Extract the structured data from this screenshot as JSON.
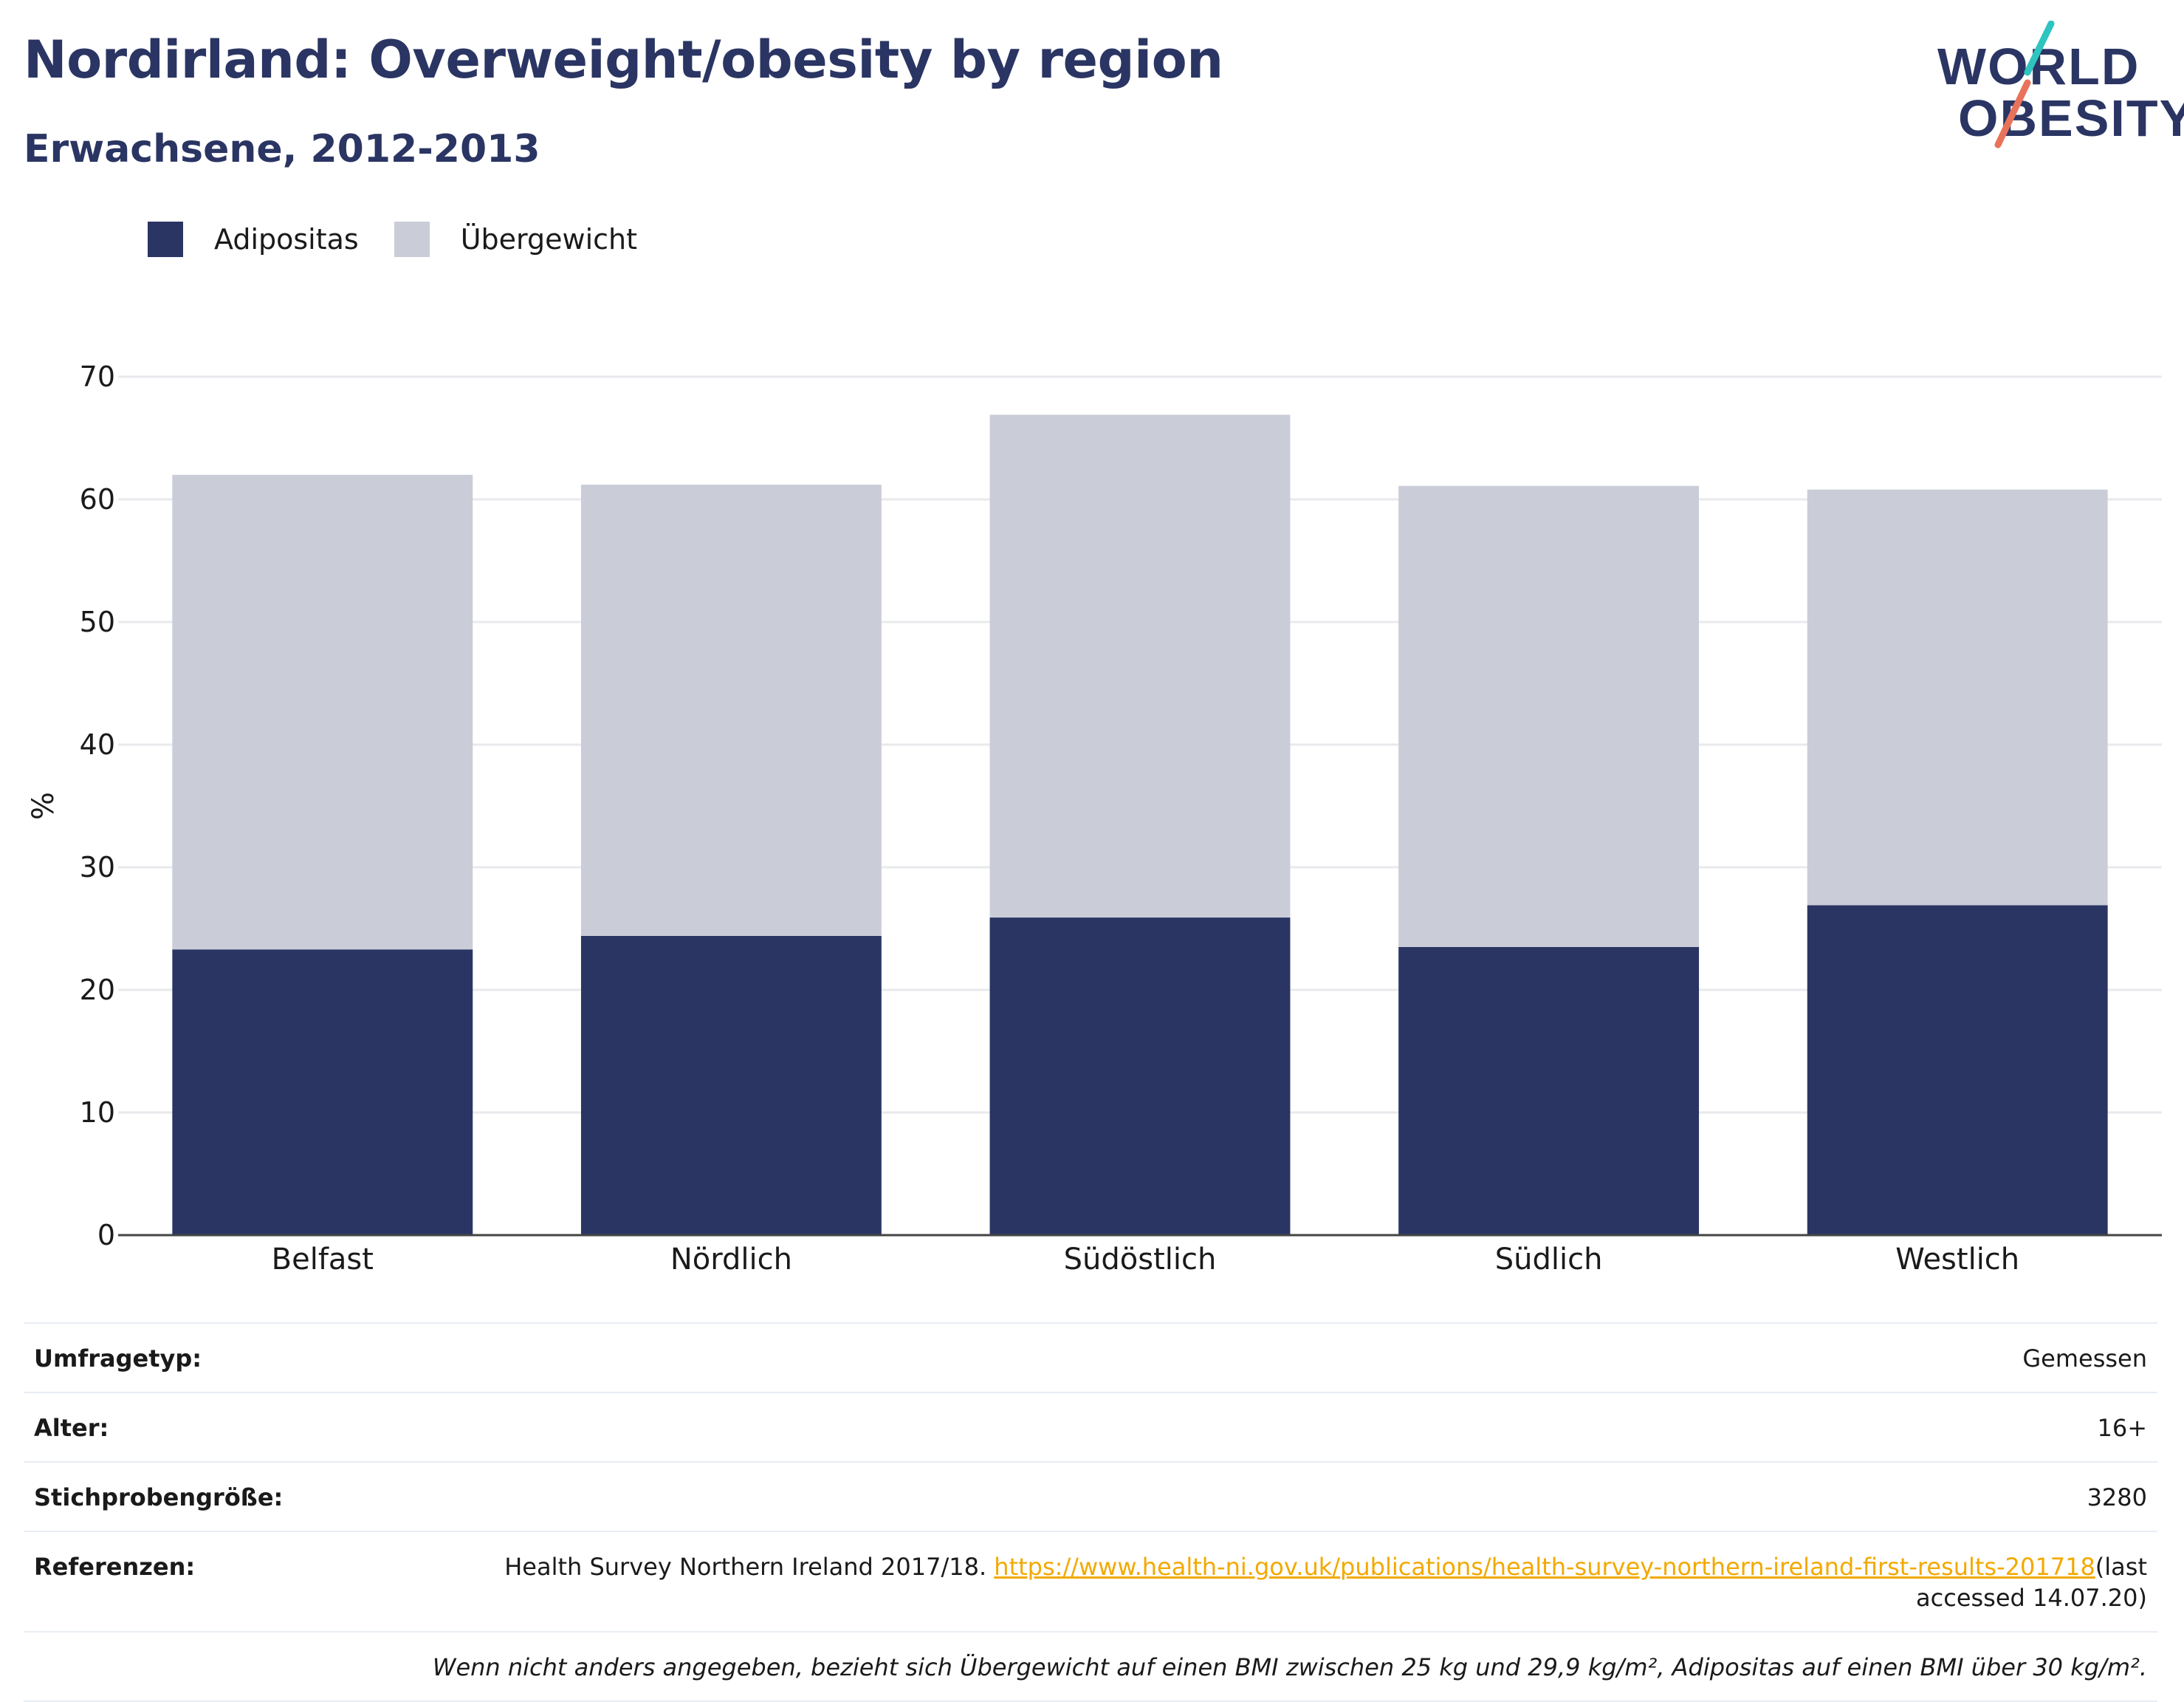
{
  "header": {
    "title": "Nordirland: Overweight/obesity by region",
    "subtitle": "Erwachsene, 2012-2013"
  },
  "logo": {
    "line1": "WORLD",
    "line2": "OBESITY",
    "accent_colors": [
      "#2ec4c0",
      "#e8735a"
    ]
  },
  "legend": [
    {
      "label": "Adipositas",
      "color": "#2a3563"
    },
    {
      "label": "Übergewicht",
      "color": "#cacdd8"
    }
  ],
  "chart_data": {
    "type": "bar",
    "stacked": true,
    "categories": [
      "Belfast",
      "Nördlich",
      "Südöstlich",
      "Südlich",
      "Westlich"
    ],
    "series": [
      {
        "name": "Adipositas",
        "values": [
          23.3,
          24.4,
          25.9,
          23.5,
          26.9
        ],
        "color": "#2a3563"
      },
      {
        "name": "Übergewicht",
        "values": [
          38.7,
          36.8,
          41.0,
          37.6,
          33.9
        ],
        "color": "#cacdd8"
      }
    ],
    "ylabel": "%",
    "ylim": [
      0,
      70
    ],
    "yticks": [
      0,
      10,
      20,
      30,
      40,
      50,
      60,
      70
    ],
    "grid": true,
    "legend_position": "top-left"
  },
  "info": {
    "rows": [
      {
        "label": "Umfragetyp:",
        "value": "Gemessen"
      },
      {
        "label": "Alter:",
        "value": "16+"
      },
      {
        "label": "Stichprobengröße:",
        "value": "3280"
      }
    ],
    "reference": {
      "label": "Referenzen:",
      "text": "Health Survey Northern Ireland 2017/18.",
      "link": "https://www.health-ni.gov.uk/publications/health-survey-northern-ireland-first-results-201718",
      "suffix": "(last accessed 14.07.20)"
    },
    "note": "Wenn nicht anders angegeben, bezieht sich Übergewicht auf einen BMI zwischen 25 kg und 29,9 kg/m², Adipositas auf einen BMI über 30 kg/m²."
  }
}
